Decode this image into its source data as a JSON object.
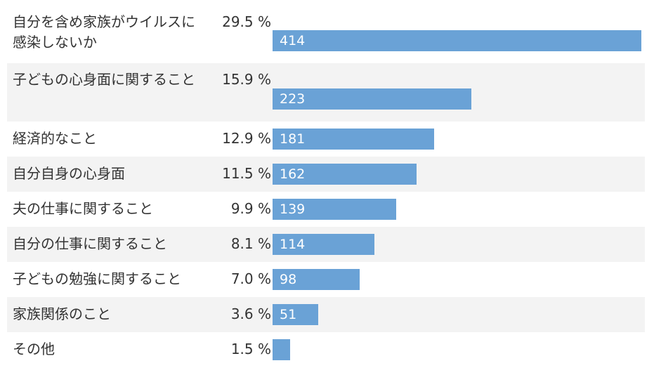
{
  "colors": {
    "bar": "#6aa2d6",
    "row_shade": "#f3f3f3",
    "text": "#333333",
    "bar_text": "#ffffff"
  },
  "chart_data": {
    "type": "bar",
    "orientation": "horizontal",
    "title": "",
    "xlabel": "",
    "ylabel": "",
    "xlim": [
      0,
      414
    ],
    "categories": [
      "自分を含め家族がウイルスに感染しないか",
      "子どもの心身面に関すること",
      "経済的なこと",
      "自分自身の心身面",
      "夫の仕事に関すること",
      "自分の仕事に関すること",
      "子どもの勉強に関すること",
      "家族関係のこと",
      "その他"
    ],
    "values": [
      414,
      223,
      181,
      162,
      139,
      114,
      98,
      51,
      20
    ],
    "value_labels": [
      "414",
      "223",
      "181",
      "162",
      "139",
      "114",
      "98",
      "51",
      ""
    ],
    "percentages": [
      "29.5 %",
      "15.9 %",
      "12.9 %",
      "11.5 %",
      "9.9 %",
      "8.1 %",
      "7.0 %",
      "3.6 %",
      "1.5 %"
    ]
  }
}
